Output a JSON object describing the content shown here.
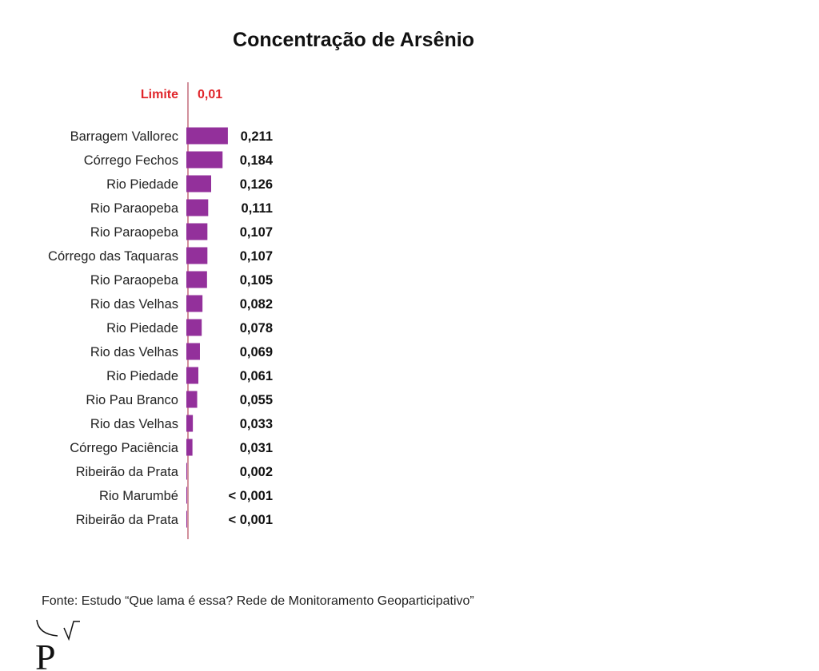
{
  "chart_data": {
    "type": "bar",
    "orientation": "horizontal",
    "title": "Concentração de Arsênio",
    "categories": [
      "Barragem Vallorec",
      "Córrego Fechos",
      "Rio Piedade",
      "Rio Paraopeba",
      "Rio Paraopeba",
      "Córrego das Taquaras",
      "Rio Paraopeba",
      "Rio das Velhas",
      "Rio Piedade",
      "Rio das Velhas",
      "Rio Piedade",
      "Rio Pau Branco",
      "Rio das Velhas",
      "Córrego Paciência",
      "Ribeirão da Prata",
      "Rio Marumbé",
      "Ribeirão da Prata"
    ],
    "values": [
      0.211,
      0.184,
      0.126,
      0.111,
      0.107,
      0.107,
      0.105,
      0.082,
      0.078,
      0.069,
      0.061,
      0.055,
      0.033,
      0.031,
      0.002,
      0.0005,
      0.0005
    ],
    "value_labels": [
      "0,211",
      "0,184",
      "0,126",
      "0,111",
      "0,107",
      "0,107",
      "0,105",
      "0,082",
      "0,078",
      "0,069",
      "0,061",
      "0,055",
      "0,033",
      "0,031",
      "0,002",
      "< 0,001",
      "< 0,001"
    ],
    "reference_line": {
      "label": "Limite",
      "value": 0.01,
      "value_label": "0,01",
      "color": "#e0262b"
    },
    "bar_color": "#93309b",
    "grid": false
  },
  "source": "Fonte: Estudo “Que lama é essa? Rede de Monitoramento Geoparticipativo”",
  "logo": {
    "text": "P"
  }
}
